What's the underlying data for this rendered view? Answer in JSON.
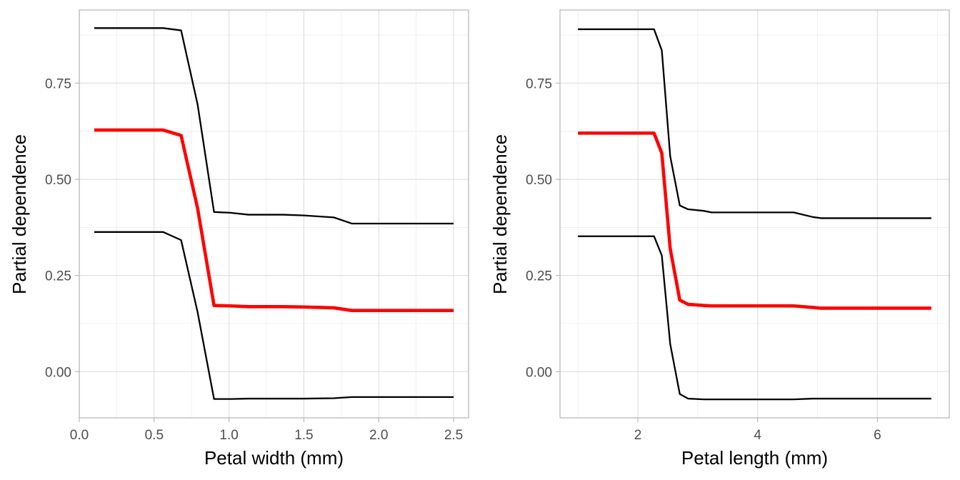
{
  "chart_data": [
    {
      "type": "line",
      "xlabel": "Petal width (mm)",
      "ylabel": "Partial dependence",
      "xlim": [
        0.0,
        2.6
      ],
      "ylim": [
        -0.12,
        0.94
      ],
      "xticks": [
        0.0,
        0.5,
        1.0,
        1.5,
        2.0,
        2.5
      ],
      "xtick_labels": [
        "0.0",
        "0.5",
        "1.0",
        "1.5",
        "2.0",
        "2.5"
      ],
      "yticks": [
        0.0,
        0.25,
        0.5,
        0.75
      ],
      "ytick_labels": [
        "0.00",
        "0.25",
        "0.50",
        "0.75"
      ],
      "grid": true,
      "series": [
        {
          "role": "upper",
          "color": "#000000",
          "x": [
            0.1,
            0.56,
            0.68,
            0.79,
            0.9,
            1.01,
            1.13,
            1.36,
            1.5,
            1.7,
            1.82,
            2.0,
            2.5
          ],
          "y": [
            0.893,
            0.893,
            0.887,
            0.695,
            0.415,
            0.413,
            0.408,
            0.408,
            0.406,
            0.401,
            0.385,
            0.385,
            0.385
          ]
        },
        {
          "role": "mean",
          "color": "#ff0000",
          "x": [
            0.1,
            0.56,
            0.68,
            0.79,
            0.9,
            1.01,
            1.13,
            1.36,
            1.5,
            1.7,
            1.82,
            2.0,
            2.5
          ],
          "y": [
            0.628,
            0.628,
            0.614,
            0.425,
            0.172,
            0.171,
            0.169,
            0.169,
            0.168,
            0.166,
            0.159,
            0.159,
            0.159
          ]
        },
        {
          "role": "lower",
          "color": "#000000",
          "x": [
            0.1,
            0.56,
            0.68,
            0.79,
            0.9,
            1.01,
            1.13,
            1.36,
            1.5,
            1.7,
            1.82,
            2.0,
            2.5
          ],
          "y": [
            0.363,
            0.363,
            0.342,
            0.155,
            -0.071,
            -0.071,
            -0.07,
            -0.07,
            -0.07,
            -0.069,
            -0.066,
            -0.066,
            -0.066
          ]
        }
      ]
    },
    {
      "type": "line",
      "xlabel": "Petal length (mm)",
      "ylabel": "Partial dependence",
      "xlim": [
        0.7,
        7.2
      ],
      "ylim": [
        -0.12,
        0.94
      ],
      "xticks": [
        2,
        4,
        6
      ],
      "xtick_labels": [
        "2",
        "4",
        "6"
      ],
      "yticks": [
        0.0,
        0.25,
        0.5,
        0.75
      ],
      "ytick_labels": [
        "0.00",
        "0.25",
        "0.50",
        "0.75"
      ],
      "grid": true,
      "series": [
        {
          "role": "upper",
          "color": "#000000",
          "x": [
            1.0,
            2.27,
            2.4,
            2.54,
            2.7,
            2.84,
            3.1,
            3.23,
            4.6,
            4.92,
            5.06,
            6.9
          ],
          "y": [
            0.89,
            0.89,
            0.835,
            0.56,
            0.432,
            0.422,
            0.418,
            0.414,
            0.414,
            0.402,
            0.399,
            0.399
          ]
        },
        {
          "role": "mean",
          "color": "#ff0000",
          "x": [
            1.0,
            2.27,
            2.4,
            2.54,
            2.7,
            2.84,
            3.1,
            3.23,
            4.6,
            4.92,
            5.06,
            6.9
          ],
          "y": [
            0.62,
            0.62,
            0.568,
            0.32,
            0.186,
            0.175,
            0.172,
            0.171,
            0.171,
            0.167,
            0.165,
            0.165
          ]
        },
        {
          "role": "lower",
          "color": "#000000",
          "x": [
            1.0,
            2.27,
            2.4,
            2.54,
            2.7,
            2.84,
            3.1,
            3.23,
            4.6,
            4.92,
            5.06,
            6.9
          ],
          "y": [
            0.352,
            0.352,
            0.302,
            0.072,
            -0.058,
            -0.07,
            -0.072,
            -0.072,
            -0.072,
            -0.07,
            -0.07,
            -0.07
          ]
        }
      ]
    }
  ]
}
